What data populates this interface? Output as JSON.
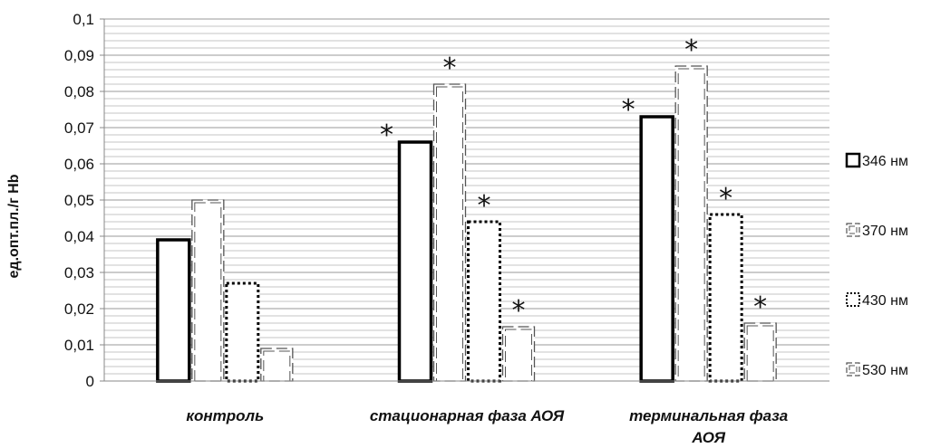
{
  "chart_data": {
    "type": "bar",
    "ylabel": "ед.опт.пл./г Hb",
    "ylim": [
      0,
      0.1
    ],
    "yticks": [
      "0",
      "0,01",
      "0,02",
      "0,03",
      "0,04",
      "0,05",
      "0,06",
      "0,07",
      "0,08",
      "0,09",
      "0,1"
    ],
    "grid": true,
    "legend_position": "right",
    "categories": [
      [
        "контроль"
      ],
      [
        "стационарная фаза АОЯ"
      ],
      [
        "терминальная фаза",
        "АОЯ"
      ]
    ],
    "series": [
      {
        "name": "346 нм",
        "values": [
          0.039,
          0.066,
          0.073
        ],
        "significant": [
          false,
          true,
          true
        ]
      },
      {
        "name": "370 нм",
        "values": [
          0.05,
          0.082,
          0.087
        ],
        "significant": [
          false,
          true,
          true
        ]
      },
      {
        "name": "430 нм",
        "values": [
          0.027,
          0.044,
          0.046
        ],
        "significant": [
          false,
          true,
          true
        ]
      },
      {
        "name": "530 нм",
        "values": [
          0.009,
          0.015,
          0.016
        ],
        "significant": [
          false,
          true,
          true
        ]
      }
    ],
    "significance_marker": "*"
  }
}
